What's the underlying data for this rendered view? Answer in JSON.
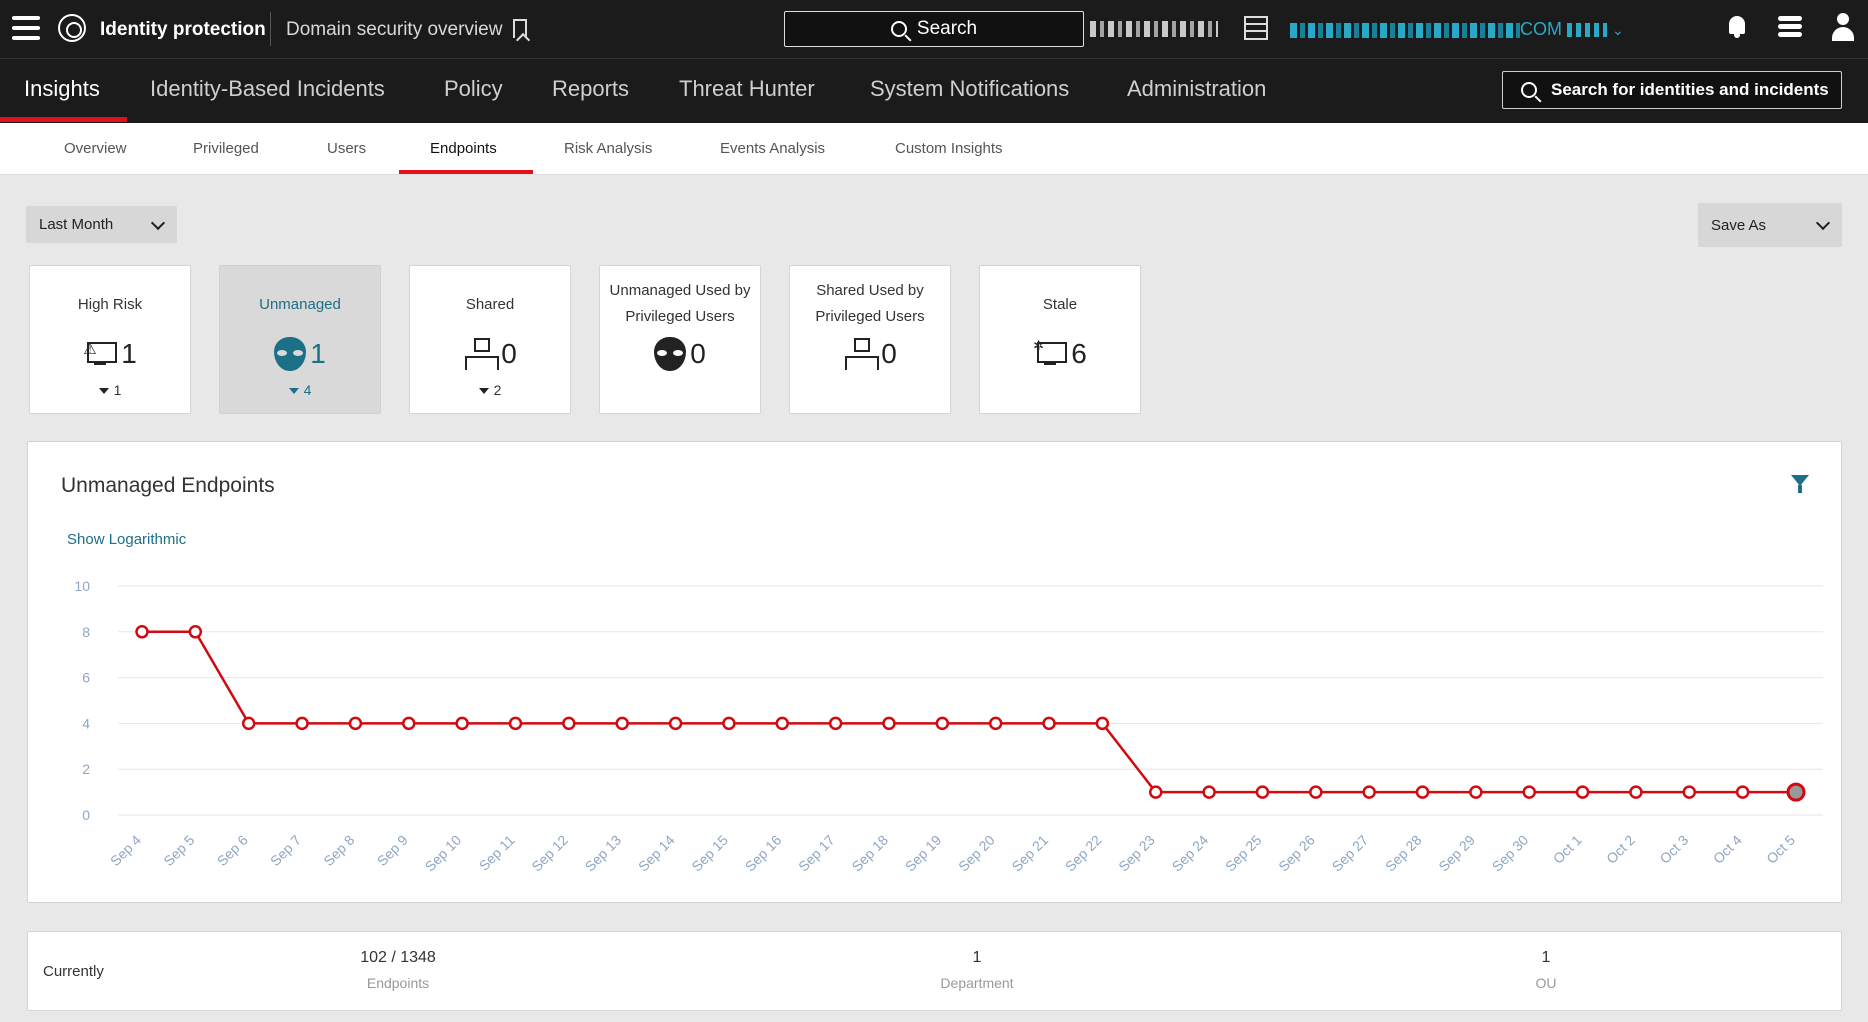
{
  "header": {
    "app_title": "Identity protection",
    "page_title": "Domain security overview",
    "search_label": "Search",
    "tenant_suffix": "COM"
  },
  "nav": {
    "items": [
      {
        "label": "Insights"
      },
      {
        "label": "Identity-Based Incidents"
      },
      {
        "label": "Policy"
      },
      {
        "label": "Reports"
      },
      {
        "label": "Threat Hunter"
      },
      {
        "label": "System Notifications"
      },
      {
        "label": "Administration"
      }
    ],
    "search_placeholder": "Search for identities and incidents"
  },
  "subtabs": [
    {
      "label": "Overview"
    },
    {
      "label": "Privileged"
    },
    {
      "label": "Users"
    },
    {
      "label": "Endpoints"
    },
    {
      "label": "Risk Analysis"
    },
    {
      "label": "Events Analysis"
    },
    {
      "label": "Custom Insights"
    }
  ],
  "filters": {
    "period": "Last Month",
    "save_as": "Save As"
  },
  "cards": [
    {
      "label": "High Risk",
      "value": "1",
      "delta": "1",
      "icon": "monitor-alert-icon"
    },
    {
      "label": "Unmanaged",
      "value": "1",
      "delta": "4",
      "icon": "alien-icon"
    },
    {
      "label": "Shared",
      "value": "0",
      "delta": "2",
      "icon": "network-icon"
    },
    {
      "label": "Unmanaged Used by Privileged Users",
      "value": "0",
      "icon": "alien-icon"
    },
    {
      "label": "Shared Used by Privileged Users",
      "value": "0",
      "icon": "network-icon"
    },
    {
      "label": "Stale",
      "value": "6",
      "icon": "monitor-stale-icon"
    }
  ],
  "chart": {
    "title": "Unmanaged Endpoints",
    "log_link": "Show Logarithmic"
  },
  "chart_data": {
    "type": "line",
    "title": "Unmanaged Endpoints",
    "xlabel": "",
    "ylabel": "",
    "ylim": [
      0,
      10
    ],
    "yticks": [
      0,
      2,
      4,
      6,
      8,
      10
    ],
    "grid": true,
    "color": "#d10a10",
    "categories": [
      "Sep 4",
      "Sep 5",
      "Sep 6",
      "Sep 7",
      "Sep 8",
      "Sep 9",
      "Sep 10",
      "Sep 11",
      "Sep 12",
      "Sep 13",
      "Sep 14",
      "Sep 15",
      "Sep 16",
      "Sep 17",
      "Sep 18",
      "Sep 19",
      "Sep 20",
      "Sep 21",
      "Sep 22",
      "Sep 23",
      "Sep 24",
      "Sep 25",
      "Sep 26",
      "Sep 27",
      "Sep 28",
      "Sep 29",
      "Sep 30",
      "Oct 1",
      "Oct 2",
      "Oct 3",
      "Oct 4",
      "Oct 5"
    ],
    "values": [
      8,
      8,
      4,
      4,
      4,
      4,
      4,
      4,
      4,
      4,
      4,
      4,
      4,
      4,
      4,
      4,
      4,
      4,
      4,
      1,
      1,
      1,
      1,
      1,
      1,
      1,
      1,
      1,
      1,
      1,
      1,
      1
    ]
  },
  "stats": {
    "label": "Currently",
    "items": [
      {
        "value": "102 / 1348",
        "caption": "Endpoints"
      },
      {
        "value": "1",
        "caption": "Department"
      },
      {
        "value": "1",
        "caption": "OU"
      }
    ]
  }
}
